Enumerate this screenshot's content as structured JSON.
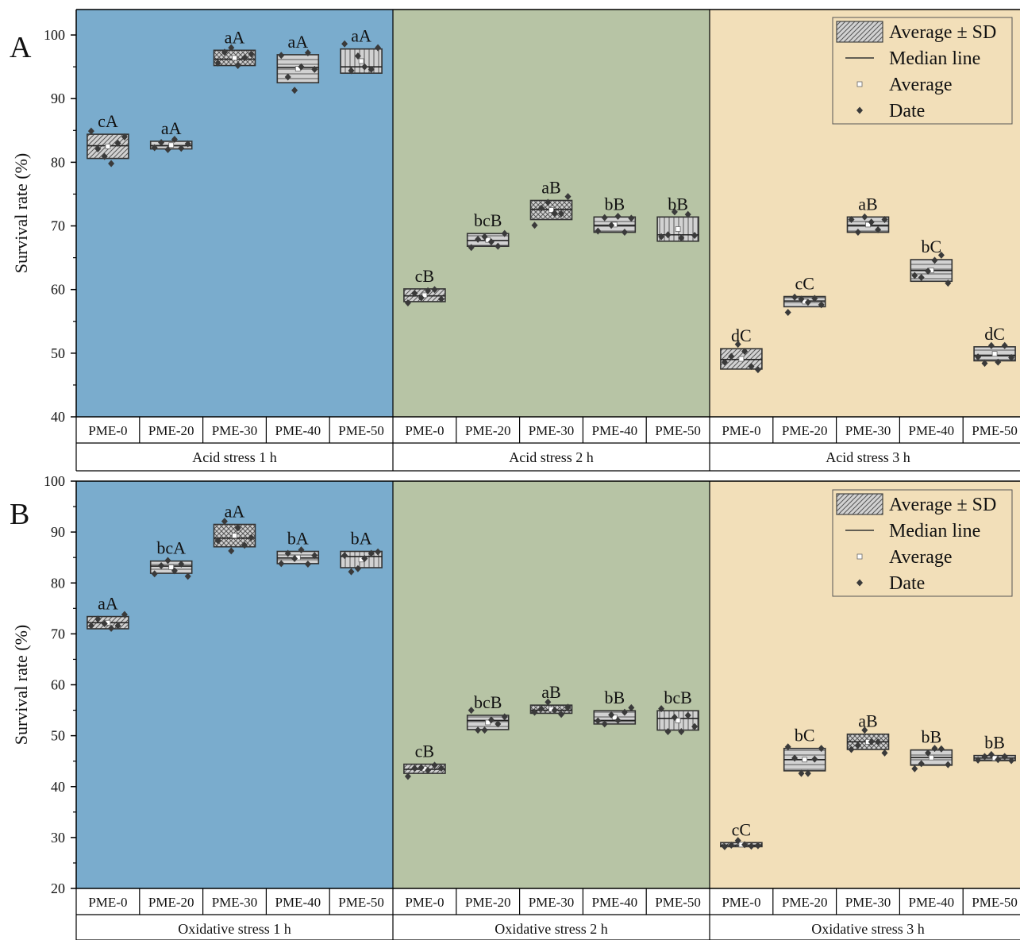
{
  "colors": {
    "group_backgrounds": [
      "#7aaccd",
      "#b7c4a5",
      "#f2dfb9"
    ],
    "box_fill": "#9a9a9a",
    "box_stroke": "#333333",
    "point": "#3a3a3a"
  },
  "legend": {
    "items": [
      {
        "label": "Average ± SD",
        "icon": "hatched-box"
      },
      {
        "label": "Median line",
        "icon": "line"
      },
      {
        "label": "Average",
        "icon": "small-square"
      },
      {
        "label": "Date",
        "icon": "diamond"
      }
    ]
  },
  "chart_data": [
    {
      "type": "box",
      "panel_label": "A",
      "ylabel": "Survival rate (%)",
      "ylim": [
        40,
        104
      ],
      "yticks": [
        40,
        50,
        60,
        70,
        80,
        90,
        100
      ],
      "legend_position": "top-right",
      "groups": [
        {
          "name": "Acid stress 1 h",
          "categories": [
            "PME-0",
            "PME-20",
            "PME-30",
            "PME-40",
            "PME-50"
          ],
          "boxes": [
            {
              "mean": 82.5,
              "sd": 1.9,
              "median": 82.6,
              "letters": "cA",
              "pattern": "diag",
              "points": [
                84.9,
                82.1,
                80.9,
                79.8,
                83.0,
                84.0
              ]
            },
            {
              "mean": 82.7,
              "sd": 0.6,
              "median": 82.6,
              "letters": "aA",
              "pattern": "horiz",
              "points": [
                82.3,
                83.1,
                82.0,
                83.6,
                82.2,
                82.9
              ]
            },
            {
              "mean": 96.4,
              "sd": 1.2,
              "median": 96.2,
              "letters": "aA",
              "pattern": "cross",
              "points": [
                95.6,
                97.3,
                98.0,
                95.2,
                96.4,
                97.0
              ]
            },
            {
              "mean": 94.7,
              "sd": 2.2,
              "median": 94.9,
              "letters": "aA",
              "pattern": "horiz",
              "points": [
                96.8,
                93.4,
                91.3,
                95.0,
                97.2,
                94.6
              ]
            },
            {
              "mean": 95.9,
              "sd": 1.9,
              "median": 95.0,
              "letters": "aA",
              "pattern": "vert",
              "points": [
                98.6,
                94.4,
                96.7,
                95.0,
                94.6,
                98.0
              ]
            }
          ]
        },
        {
          "name": "Acid stress 2 h",
          "categories": [
            "PME-0",
            "PME-20",
            "PME-30",
            "PME-40",
            "PME-50"
          ],
          "boxes": [
            {
              "mean": 59.1,
              "sd": 1.0,
              "median": 59.0,
              "letters": "cB",
              "pattern": "diag",
              "points": [
                57.9,
                59.4,
                58.7,
                59.8,
                60.0,
                58.5
              ]
            },
            {
              "mean": 67.8,
              "sd": 1.0,
              "median": 67.7,
              "letters": "bcB",
              "pattern": "horiz",
              "points": [
                66.6,
                67.9,
                68.3,
                67.5,
                66.8,
                68.8
              ]
            },
            {
              "mean": 72.5,
              "sd": 1.5,
              "median": 72.6,
              "letters": "aB",
              "pattern": "cross",
              "points": [
                70.1,
                72.8,
                73.7,
                72.0,
                71.9,
                74.6
              ]
            },
            {
              "mean": 70.2,
              "sd": 1.2,
              "median": 70.1,
              "letters": "bB",
              "pattern": "horiz",
              "points": [
                69.2,
                71.3,
                70.1,
                71.5,
                69.0,
                71.2
              ]
            },
            {
              "mean": 69.5,
              "sd": 1.9,
              "median": 68.6,
              "letters": "bB",
              "pattern": "vert",
              "points": [
                68.3,
                68.6,
                72.2,
                68.1,
                71.8,
                68.5
              ]
            }
          ]
        },
        {
          "name": "Acid stress 3 h",
          "categories": [
            "PME-0",
            "PME-20",
            "PME-30",
            "PME-40",
            "PME-50"
          ],
          "boxes": [
            {
              "mean": 49.1,
              "sd": 1.6,
              "median": 49.0,
              "letters": "dC",
              "pattern": "diag",
              "points": [
                48.6,
                49.5,
                51.4,
                50.3,
                47.9,
                47.4
              ]
            },
            {
              "mean": 58.1,
              "sd": 0.8,
              "median": 58.2,
              "letters": "cC",
              "pattern": "horiz",
              "points": [
                56.4,
                58.8,
                58.5,
                58.0,
                58.6,
                57.6
              ]
            },
            {
              "mean": 70.2,
              "sd": 1.2,
              "median": 70.1,
              "letters": "aB",
              "pattern": "horiz",
              "points": [
                71.0,
                69.0,
                71.4,
                70.6,
                69.4,
                71.0
              ]
            },
            {
              "mean": 63.0,
              "sd": 1.7,
              "median": 63.0,
              "letters": "bC",
              "pattern": "horiz",
              "points": [
                62.2,
                61.9,
                62.9,
                64.6,
                65.4,
                61.0
              ]
            },
            {
              "mean": 49.9,
              "sd": 1.1,
              "median": 49.6,
              "letters": "dC",
              "pattern": "horiz",
              "points": [
                49.4,
                48.4,
                51.2,
                48.6,
                51.2,
                49.3
              ]
            }
          ]
        }
      ],
      "group_labels": [
        "Acid stress 1 h",
        "Acid stress 2 h",
        "Acid stress 3 h"
      ]
    },
    {
      "type": "box",
      "panel_label": "B",
      "ylabel": "Survival rate (%)",
      "ylim": [
        20,
        100
      ],
      "yticks": [
        20,
        30,
        40,
        50,
        60,
        70,
        80,
        90,
        100
      ],
      "legend_position": "top-right",
      "groups": [
        {
          "name": "Oxidative stress 1 h",
          "categories": [
            "PME-0",
            "PME-20",
            "PME-30",
            "PME-40",
            "PME-50"
          ],
          "boxes": [
            {
              "mean": 72.2,
              "sd": 1.2,
              "median": 72.2,
              "letters": "aA",
              "pattern": "diag",
              "points": [
                71.6,
                72.9,
                72.0,
                71.1,
                71.6,
                73.8
              ]
            },
            {
              "mean": 83.1,
              "sd": 1.2,
              "median": 83.3,
              "letters": "bcA",
              "pattern": "horiz",
              "points": [
                81.8,
                83.4,
                84.4,
                82.4,
                83.7,
                81.3
              ]
            },
            {
              "mean": 89.3,
              "sd": 2.2,
              "median": 88.8,
              "letters": "aA",
              "pattern": "cross",
              "points": [
                88.3,
                92.1,
                86.3,
                90.8,
                87.4,
                88.9
              ]
            },
            {
              "mean": 85.0,
              "sd": 1.2,
              "median": 84.9,
              "letters": "bA",
              "pattern": "horiz",
              "points": [
                83.8,
                85.8,
                84.8,
                86.5,
                83.7,
                85.4
              ]
            },
            {
              "mean": 84.6,
              "sd": 1.6,
              "median": 85.2,
              "letters": "bA",
              "pattern": "vert",
              "points": [
                85.4,
                82.2,
                82.8,
                84.8,
                85.8,
                86.1
              ]
            }
          ]
        },
        {
          "name": "Oxidative stress 2 h",
          "categories": [
            "PME-0",
            "PME-20",
            "PME-30",
            "PME-40",
            "PME-50"
          ],
          "boxes": [
            {
              "mean": 43.5,
              "sd": 0.9,
              "median": 43.4,
              "letters": "cB",
              "pattern": "diag",
              "points": [
                42.0,
                43.6,
                43.7,
                43.2,
                44.2,
                43.6
              ]
            },
            {
              "mean": 52.6,
              "sd": 1.4,
              "median": 53.0,
              "letters": "bcB",
              "pattern": "horiz",
              "points": [
                55.0,
                51.1,
                51.1,
                53.1,
                52.3,
                53.7
              ]
            },
            {
              "mean": 55.2,
              "sd": 0.8,
              "median": 55.0,
              "letters": "aB",
              "pattern": "cross",
              "points": [
                54.6,
                55.3,
                56.6,
                55.0,
                54.2,
                55.6
              ]
            },
            {
              "mean": 53.6,
              "sd": 1.3,
              "median": 53.0,
              "letters": "bB",
              "pattern": "horiz",
              "points": [
                52.9,
                52.3,
                54.1,
                53.0,
                54.6,
                55.5
              ]
            },
            {
              "mean": 53.0,
              "sd": 1.9,
              "median": 53.4,
              "letters": "bcB",
              "pattern": "vert",
              "points": [
                55.3,
                50.8,
                53.6,
                50.8,
                54.0,
                51.8
              ]
            }
          ]
        },
        {
          "name": "Oxidative stress 3 h",
          "categories": [
            "PME-0",
            "PME-20",
            "PME-30",
            "PME-40",
            "PME-50"
          ],
          "boxes": [
            {
              "mean": 28.6,
              "sd": 0.4,
              "median": 28.5,
              "letters": "cC",
              "pattern": "diag",
              "points": [
                28.2,
                28.5,
                29.4,
                28.6,
                28.3,
                28.4
              ]
            },
            {
              "mean": 45.3,
              "sd": 2.2,
              "median": 45.3,
              "letters": "bC",
              "pattern": "horiz",
              "points": [
                47.8,
                45.6,
                42.6,
                42.6,
                45.4,
                47.5
              ]
            },
            {
              "mean": 48.8,
              "sd": 1.5,
              "median": 48.8,
              "letters": "aB",
              "pattern": "cross",
              "points": [
                47.3,
                48.1,
                51.1,
                48.8,
                48.8,
                46.6
              ]
            },
            {
              "mean": 45.7,
              "sd": 1.5,
              "median": 45.7,
              "letters": "bB",
              "pattern": "horiz",
              "points": [
                43.5,
                44.5,
                46.6,
                47.5,
                47.4,
                44.3
              ]
            },
            {
              "mean": 45.6,
              "sd": 0.5,
              "median": 45.6,
              "letters": "bB",
              "pattern": "horiz",
              "points": [
                45.2,
                45.9,
                46.3,
                45.3,
                45.9,
                45.1
              ]
            }
          ]
        }
      ],
      "group_labels": [
        "Oxidative stress 1 h",
        "Oxidative stress 2 h",
        "Oxidative stress 3 h"
      ]
    }
  ]
}
